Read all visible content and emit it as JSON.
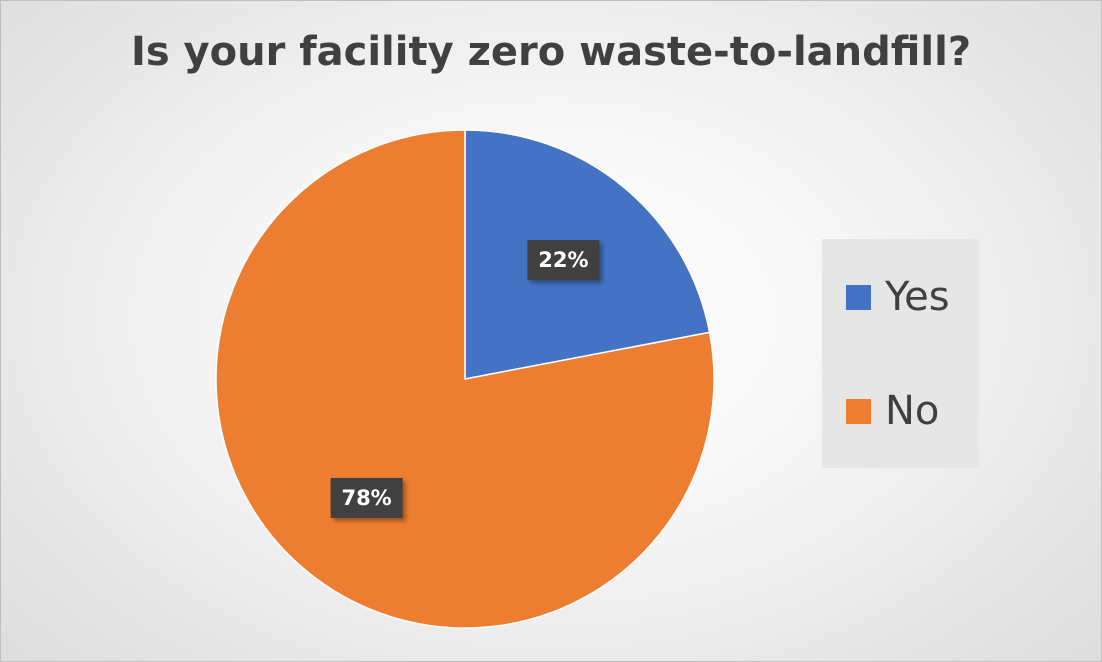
{
  "chart_data": {
    "type": "pie",
    "title": "Is your facility zero waste-to-landfill?",
    "categories": [
      "Yes",
      "No"
    ],
    "values": [
      22,
      78
    ],
    "value_labels": [
      "22%",
      "78%"
    ],
    "colors": [
      "#4472c4",
      "#ed7d31"
    ],
    "legend": {
      "position": "right",
      "entries": [
        "Yes",
        "No"
      ]
    },
    "start_angle_deg": 0,
    "direction": "clockwise"
  }
}
